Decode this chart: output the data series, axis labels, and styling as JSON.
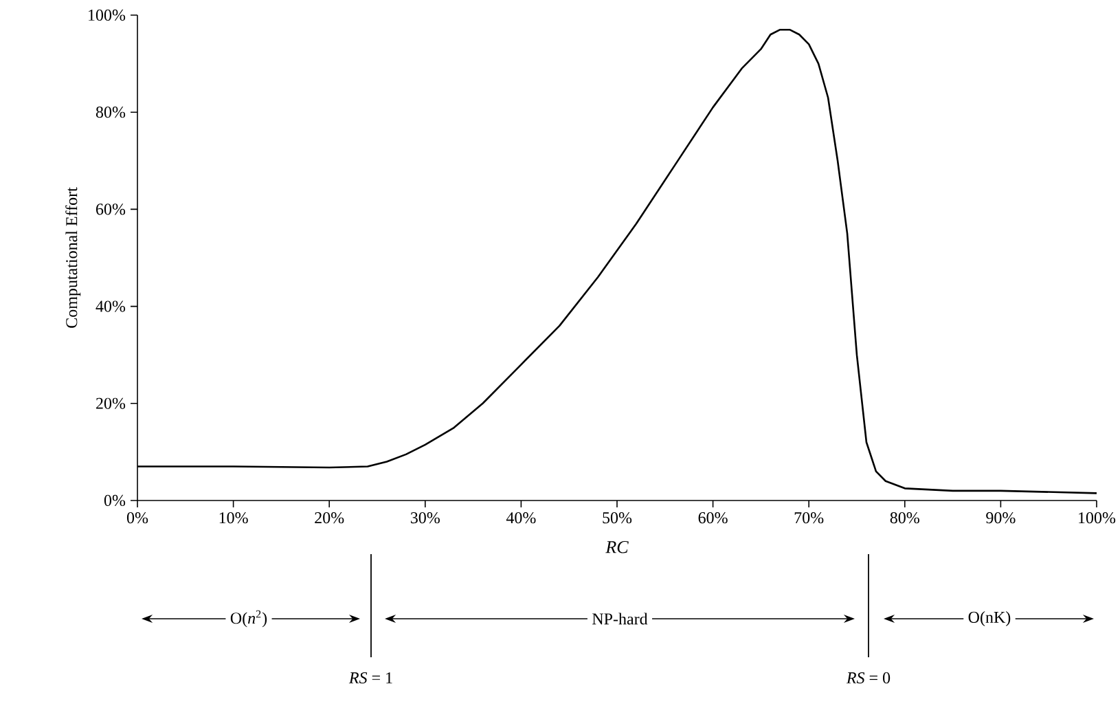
{
  "chart_data": {
    "type": "line",
    "xlabel": "RC",
    "ylabel": "Computational Effort",
    "x": [
      0,
      10,
      20,
      24,
      26,
      28,
      30,
      33,
      36,
      40,
      44,
      48,
      52,
      56,
      60,
      63,
      65,
      66,
      67,
      68,
      69,
      70,
      71,
      72,
      73,
      74,
      75,
      76,
      77,
      78,
      80,
      85,
      90,
      100
    ],
    "series": [
      {
        "color": "#000000",
        "values": [
          7,
          7,
          6.8,
          7,
          8,
          9.5,
          11.5,
          15,
          20,
          28,
          36,
          46,
          57,
          69,
          81,
          89,
          93,
          96,
          97,
          97,
          96,
          94,
          90,
          83,
          70,
          55,
          30,
          12,
          6,
          4,
          2.5,
          2,
          2,
          1.5
        ]
      }
    ],
    "xlim": [
      0,
      100
    ],
    "ylim": [
      0,
      100
    ],
    "xticks": [
      {
        "value": 0,
        "label": "0%"
      },
      {
        "value": 10,
        "label": "10%"
      },
      {
        "value": 20,
        "label": "20%"
      },
      {
        "value": 30,
        "label": "30%"
      },
      {
        "value": 40,
        "label": "40%"
      },
      {
        "value": 50,
        "label": "50%"
      },
      {
        "value": 60,
        "label": "60%"
      },
      {
        "value": 70,
        "label": "70%"
      },
      {
        "value": 80,
        "label": "80%"
      },
      {
        "value": 90,
        "label": "90%"
      },
      {
        "value": 100,
        "label": "100%"
      }
    ],
    "yticks": [
      {
        "value": 0,
        "label": "0%"
      },
      {
        "value": 20,
        "label": "20%"
      },
      {
        "value": 40,
        "label": "40%"
      },
      {
        "value": 60,
        "label": "60%"
      },
      {
        "value": 80,
        "label": "80%"
      },
      {
        "value": 100,
        "label": "100%"
      }
    ],
    "annotations": [
      "O(*n*$^{2}$)",
      "NP-hard",
      "O(nK)",
      "*RS* = 1",
      "*RS* = 0"
    ],
    "grid": false,
    "marker": "none",
    "line_style": "solid"
  }
}
